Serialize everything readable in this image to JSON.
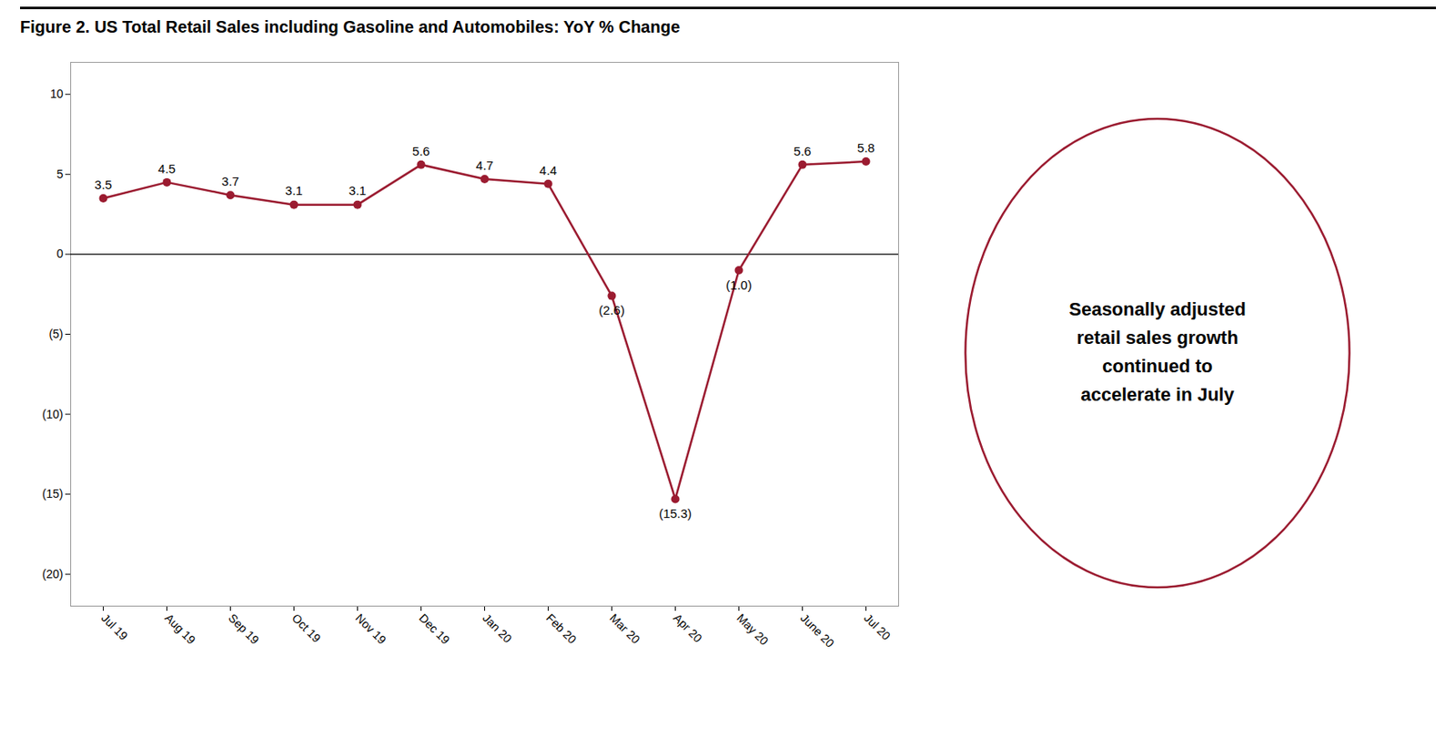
{
  "chart_data": {
    "type": "line",
    "title": "Figure 2. US Total Retail Sales including Gasoline and Automobiles: YoY % Change",
    "categories": [
      "Jul 19",
      "Aug 19",
      "Sep 19",
      "Oct 19",
      "Nov 19",
      "Dec 19",
      "Jan 20",
      "Feb 20",
      "Mar 20",
      "Apr 20",
      "May 20",
      "June 20",
      "Jul 20"
    ],
    "values": [
      3.5,
      4.5,
      3.7,
      3.1,
      3.1,
      5.6,
      4.7,
      4.4,
      -2.6,
      -15.3,
      -1.0,
      5.6,
      5.8
    ],
    "value_labels": [
      "3.5",
      "4.5",
      "3.7",
      "3.1",
      "3.1",
      "5.6",
      "4.7",
      "4.4",
      "(2.6)",
      "(15.3)",
      "(1.0)",
      "5.6",
      "5.8"
    ],
    "data_labels": true,
    "color": "#9B1B30",
    "marker": "circle",
    "grid": false,
    "ylim": [
      -22,
      12
    ],
    "yticks": [
      {
        "value": -20,
        "label": "(20)"
      },
      {
        "value": -15,
        "label": "(15)"
      },
      {
        "value": -10,
        "label": "(10)"
      },
      {
        "value": -5,
        "label": "(5)"
      },
      0,
      5,
      10
    ],
    "annotation": "Seasonally adjusted\nretail sales growth\ncontinued to\naccelerate in July"
  }
}
